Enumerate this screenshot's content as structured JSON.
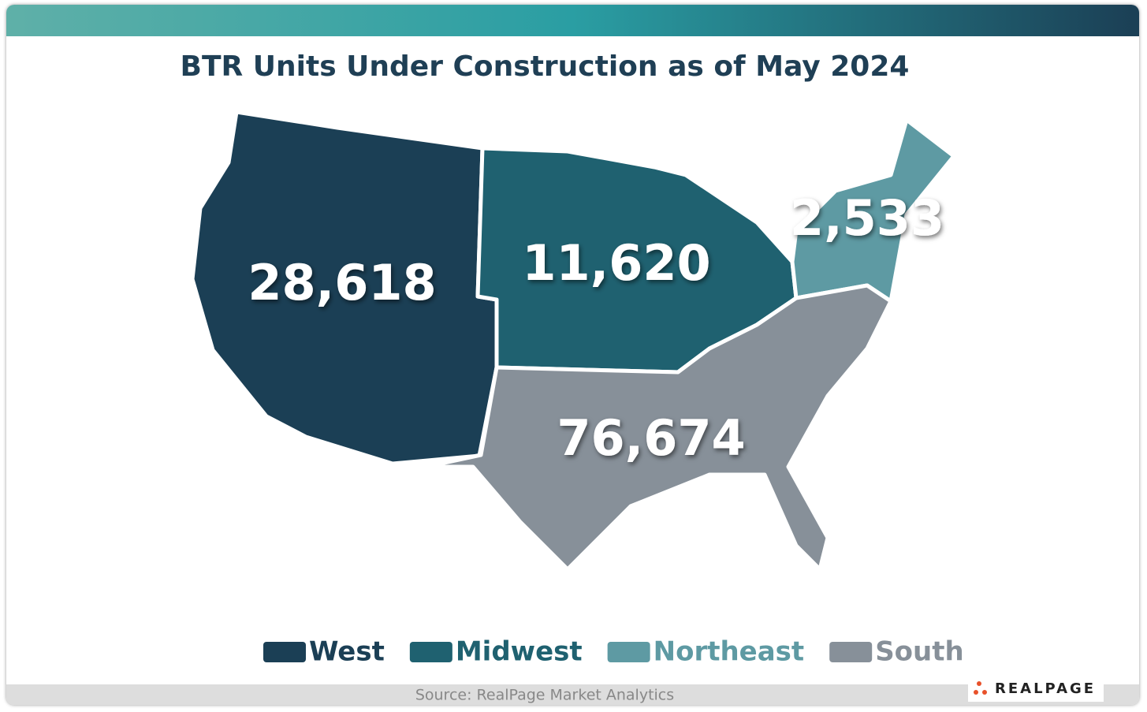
{
  "title": "BTR Units Under Construction as of May 2024",
  "regions": [
    {
      "name": "West",
      "value": 28618,
      "value_label": "28,618",
      "color": "#1b3f55"
    },
    {
      "name": "Midwest",
      "value": 11620,
      "value_label": "11,620",
      "color": "#1f6170"
    },
    {
      "name": "Northeast",
      "value": 2533,
      "value_label": "2,533",
      "color": "#5e9aa3"
    },
    {
      "name": "South",
      "value": 76674,
      "value_label": "76,674",
      "color": "#879099"
    }
  ],
  "source": "Source: RealPage Market Analytics",
  "logo": "REALPAGE"
}
